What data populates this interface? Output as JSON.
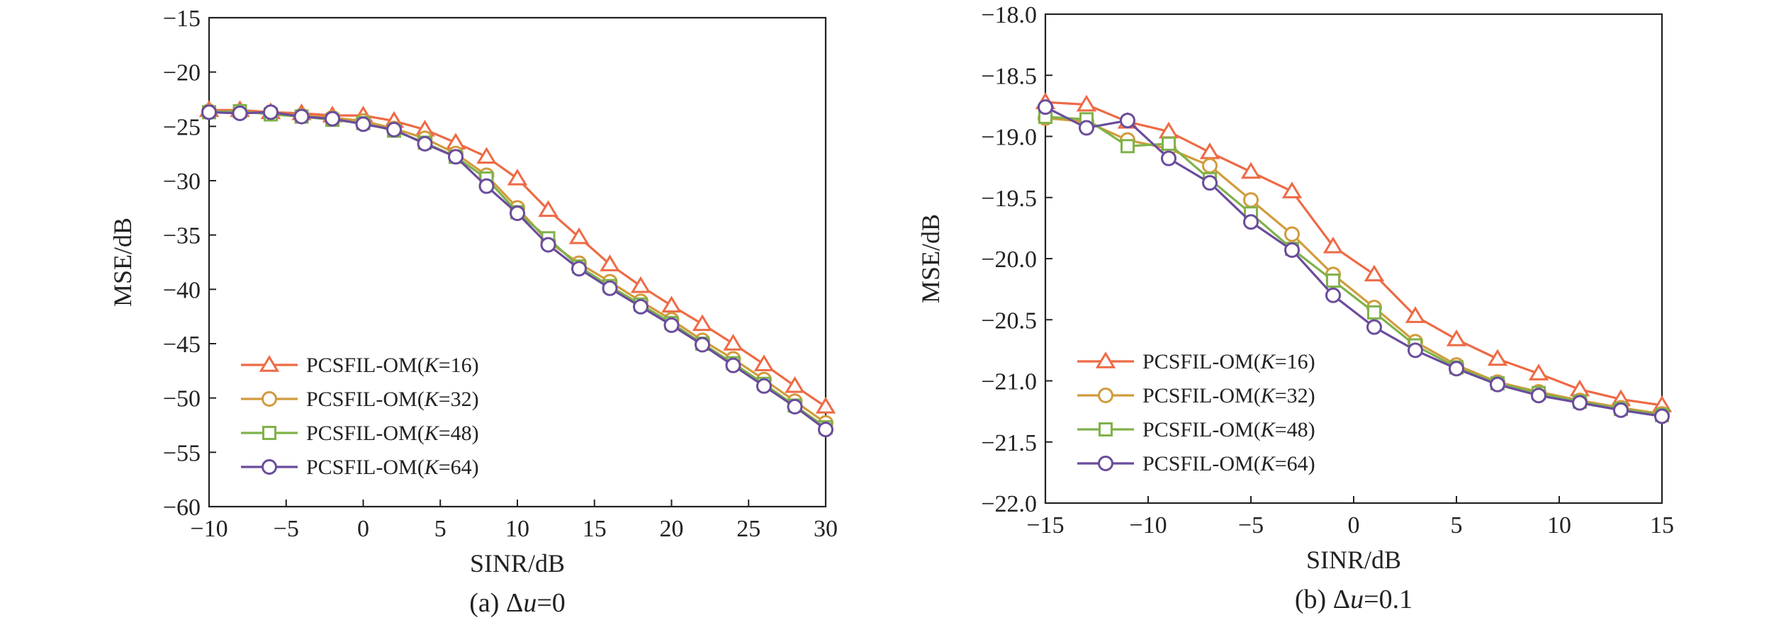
{
  "chart_data": [
    {
      "type": "line",
      "caption": "(a) Δu=0",
      "xlabel": "SINR/dB",
      "ylabel": "MSE/dB",
      "xlim": [
        -10,
        30
      ],
      "ylim": [
        -60,
        -15
      ],
      "xticks": [
        -10,
        -5,
        0,
        5,
        10,
        15,
        20,
        25,
        30
      ],
      "yticks": [
        -60,
        -55,
        -50,
        -45,
        -40,
        -35,
        -30,
        -25,
        -20,
        -15
      ],
      "legend_position": "lower-left",
      "x": [
        -10,
        -8,
        -6,
        -4,
        -2,
        0,
        2,
        4,
        6,
        8,
        10,
        12,
        14,
        16,
        18,
        20,
        22,
        24,
        26,
        28,
        30
      ],
      "series": [
        {
          "name": "PCSFIL-OM(K=16)",
          "k": "16",
          "marker": "triangle",
          "color": "#ee6a45",
          "values": [
            -23.5,
            -23.5,
            -23.7,
            -23.8,
            -24.0,
            -24.0,
            -24.5,
            -25.3,
            -26.5,
            -27.8,
            -29.8,
            -32.7,
            -35.2,
            -37.7,
            -39.7,
            -41.5,
            -43.2,
            -45.0,
            -46.9,
            -48.9,
            -50.8
          ]
        },
        {
          "name": "PCSFIL-OM(K=32)",
          "k": "32",
          "marker": "circle",
          "color": "#d19b3c",
          "values": [
            -23.6,
            -23.7,
            -23.8,
            -24.0,
            -24.2,
            -24.5,
            -25.2,
            -26.1,
            -27.5,
            -29.5,
            -32.5,
            -35.6,
            -37.6,
            -39.3,
            -41.1,
            -42.8,
            -44.7,
            -46.4,
            -48.3,
            -50.3,
            -52.3
          ]
        },
        {
          "name": "PCSFIL-OM(K=48)",
          "k": "48",
          "marker": "square",
          "color": "#7fb24a",
          "values": [
            -23.7,
            -23.6,
            -23.9,
            -24.1,
            -24.4,
            -24.7,
            -25.4,
            -26.5,
            -27.8,
            -29.8,
            -32.9,
            -35.3,
            -37.9,
            -39.7,
            -41.4,
            -43.1,
            -45.0,
            -46.8,
            -48.7,
            -50.7,
            -52.7
          ]
        },
        {
          "name": "PCSFIL-OM(K=64)",
          "k": "64",
          "marker": "circle",
          "color": "#6a4c9c",
          "values": [
            -23.7,
            -23.8,
            -23.7,
            -24.1,
            -24.3,
            -24.8,
            -25.3,
            -26.6,
            -27.8,
            -30.5,
            -33.0,
            -35.9,
            -38.1,
            -39.9,
            -41.6,
            -43.3,
            -45.1,
            -47.0,
            -48.9,
            -50.8,
            -52.9
          ]
        }
      ]
    },
    {
      "type": "line",
      "caption": "(b) Δu=0.1",
      "xlabel": "SINR/dB",
      "ylabel": "MSE/dB",
      "xlim": [
        -15,
        15
      ],
      "ylim": [
        -22,
        -18
      ],
      "xticks": [
        -15,
        -10,
        -5,
        0,
        5,
        10,
        15
      ],
      "yticks": [
        -22.0,
        -21.5,
        -21.0,
        -20.5,
        -20.0,
        -19.5,
        -19.0,
        -18.5,
        -18.0
      ],
      "legend_position": "lower-left",
      "x": [
        -15,
        -13,
        -11,
        -9,
        -7,
        -5,
        -3,
        -1,
        1,
        3,
        5,
        7,
        9,
        11,
        13,
        15
      ],
      "series": [
        {
          "name": "PCSFIL-OM(K=16)",
          "k": "16",
          "marker": "triangle",
          "color": "#ee6a45",
          "values": [
            -18.72,
            -18.74,
            -18.88,
            -18.96,
            -19.13,
            -19.29,
            -19.45,
            -19.9,
            -20.13,
            -20.47,
            -20.66,
            -20.82,
            -20.94,
            -21.07,
            -21.15,
            -21.2
          ]
        },
        {
          "name": "PCSFIL-OM(K=32)",
          "k": "32",
          "marker": "circle",
          "color": "#d19b3c",
          "values": [
            -18.85,
            -18.88,
            -19.03,
            -19.1,
            -19.24,
            -19.52,
            -19.8,
            -20.13,
            -20.4,
            -20.68,
            -20.87,
            -21.01,
            -21.09,
            -21.16,
            -21.22,
            -21.27
          ]
        },
        {
          "name": "PCSFIL-OM(K=48)",
          "k": "48",
          "marker": "square",
          "color": "#7fb24a",
          "values": [
            -18.84,
            -18.86,
            -19.08,
            -19.06,
            -19.35,
            -19.63,
            -19.92,
            -20.18,
            -20.44,
            -20.71,
            -20.89,
            -21.02,
            -21.1,
            -21.17,
            -21.23,
            -21.28
          ]
        },
        {
          "name": "PCSFIL-OM(K=64)",
          "k": "64",
          "marker": "circle",
          "color": "#6a4c9c",
          "values": [
            -18.76,
            -18.93,
            -18.87,
            -19.18,
            -19.38,
            -19.7,
            -19.93,
            -20.3,
            -20.56,
            -20.75,
            -20.9,
            -21.03,
            -21.12,
            -21.18,
            -21.24,
            -21.29
          ]
        }
      ]
    }
  ]
}
